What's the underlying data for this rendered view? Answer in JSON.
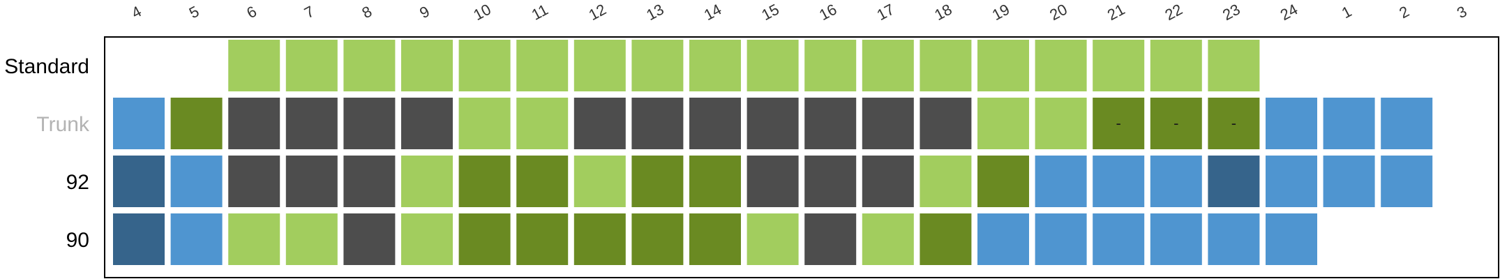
{
  "chart_data": {
    "type": "heatmap",
    "columns": [
      "4",
      "5",
      "6",
      "7",
      "8",
      "9",
      "10",
      "11",
      "12",
      "13",
      "14",
      "15",
      "16",
      "17",
      "18",
      "19",
      "20",
      "21",
      "22",
      "23",
      "24",
      "1",
      "2",
      "3"
    ],
    "rows": [
      {
        "label": "Standard",
        "label_color": "#000000",
        "cells": [
          null,
          null,
          "L",
          "L",
          "L",
          "L",
          "L",
          "L",
          "L",
          "L",
          "L",
          "L",
          "L",
          "L",
          "L",
          "L",
          "L",
          "L",
          "L",
          "L",
          null,
          null,
          null,
          null
        ],
        "cell_labels": [
          "",
          "",
          "",
          "",
          "",
          "",
          "",
          "",
          "",
          "",
          "",
          "",
          "",
          "",
          "",
          "",
          "",
          "",
          "",
          "",
          "",
          "",
          "",
          ""
        ]
      },
      {
        "label": "Trunk",
        "label_color": "#b3b3b3",
        "cells": [
          "B",
          "G",
          "K",
          "K",
          "K",
          "K",
          "L",
          "L",
          "K",
          "K",
          "K",
          "K",
          "K",
          "K",
          "K",
          "L",
          "L",
          "G",
          "G",
          "G",
          "B",
          "B",
          "B",
          null
        ],
        "cell_labels": [
          "",
          "",
          "",
          "",
          "",
          "",
          "",
          "",
          "",
          "",
          "",
          "",
          "",
          "",
          "",
          "",
          "",
          "-",
          "-",
          "-",
          "",
          "",
          "",
          ""
        ]
      },
      {
        "label": "92",
        "label_color": "#000000",
        "cells": [
          "N",
          "B",
          "K",
          "K",
          "K",
          "L",
          "G",
          "G",
          "L",
          "G",
          "G",
          "K",
          "K",
          "K",
          "L",
          "G",
          "B",
          "B",
          "B",
          "N",
          "B",
          "B",
          "B",
          null
        ],
        "cell_labels": [
          "",
          "",
          "",
          "",
          "",
          "",
          "",
          "",
          "",
          "",
          "",
          "",
          "",
          "",
          "",
          "",
          "",
          "",
          "",
          "",
          "",
          "",
          "",
          ""
        ]
      },
      {
        "label": "90",
        "label_color": "#000000",
        "cells": [
          "N",
          "B",
          "L",
          "L",
          "K",
          "L",
          "G",
          "G",
          "G",
          "G",
          "G",
          "L",
          "K",
          "L",
          "G",
          "B",
          "B",
          "B",
          "B",
          "B",
          "B",
          null,
          null,
          null
        ],
        "cell_labels": [
          "",
          "",
          "",
          "",
          "",
          "",
          "",
          "",
          "",
          "",
          "",
          "",
          "",
          "",
          "",
          "",
          "",
          "",
          "",
          "",
          "",
          "",
          "",
          ""
        ]
      }
    ],
    "palette": {
      "L": "#a2cd5e",
      "G": "#6a8a22",
      "K": "#4d4d4d",
      "B": "#4f95d0",
      "N": "#36648b"
    },
    "frame_color": "#000000",
    "grid": false,
    "legend": "none"
  }
}
